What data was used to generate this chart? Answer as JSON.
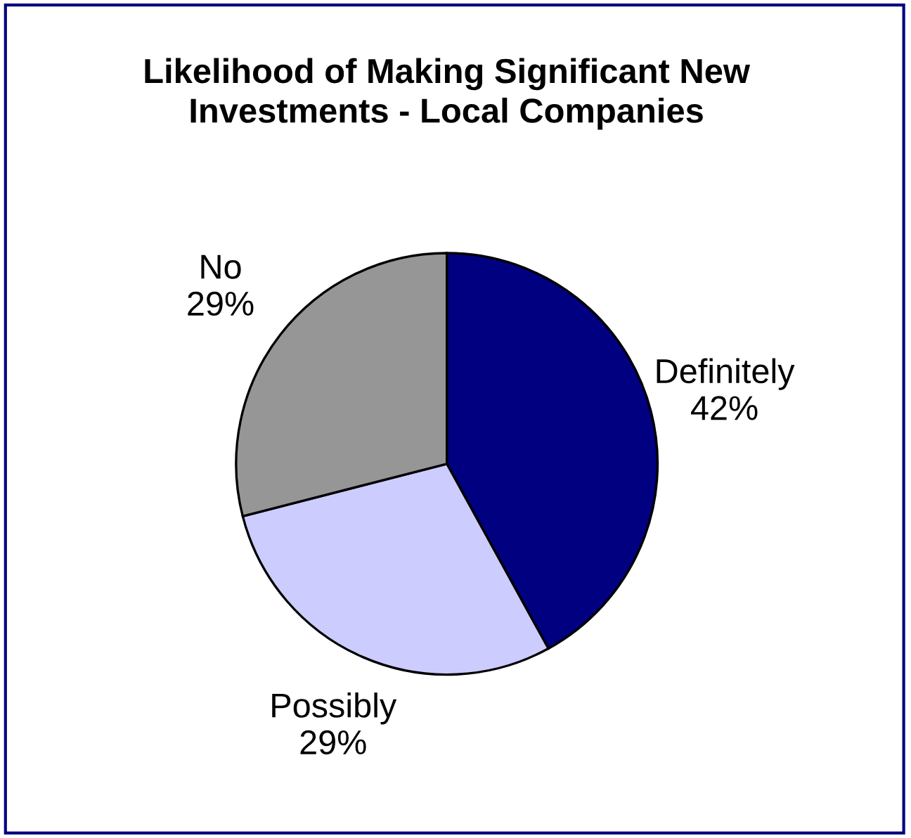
{
  "chart_data": {
    "type": "pie",
    "title": "Likelihood of Making Significant New\nInvestments - Local Companies",
    "categories": [
      "Definitely",
      "Possibly",
      "No"
    ],
    "values": [
      42,
      29,
      29
    ],
    "value_labels": [
      "42%",
      "29%",
      "29%"
    ],
    "colors": [
      "#000080",
      "#ccccff",
      "#969696"
    ],
    "legend": false
  }
}
